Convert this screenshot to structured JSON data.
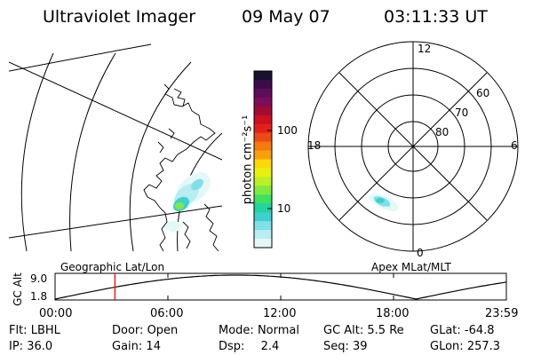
{
  "header": {
    "instrument": "Ultraviolet Imager",
    "date": "09 May 07",
    "time": "03:11:33 UT"
  },
  "colorbar": {
    "unit_label": "photon cm⁻²s⁻¹",
    "ticks": [
      "100",
      "10"
    ],
    "colors": [
      "#1a1030",
      "#3a0c4a",
      "#5c0e58",
      "#7e0c5c",
      "#a00c34",
      "#cc1020",
      "#e4201a",
      "#ec4a16",
      "#f47a10",
      "#f8a00c",
      "#fcd80a",
      "#e8f010",
      "#bcf024",
      "#80ea40",
      "#40e060",
      "#22d4a0",
      "#3ed0d0",
      "#80e0e8",
      "#b8eef0",
      "#e4f8f8"
    ]
  },
  "polar_plot": {
    "labels": {
      "noon": "12",
      "midnight": "0",
      "dusk": "18",
      "dawn": "6"
    },
    "lat_labels": [
      "60",
      "70",
      "80"
    ]
  },
  "timeline": {
    "left_title": "Geographic Lat/Lon",
    "right_title": "Apex MLat/MLT",
    "ylabel": "GC Alt",
    "ymax": "9.0",
    "ymin": "1.8",
    "ticks": [
      "00:00",
      "06:00",
      "12:00",
      "18:00",
      "23:59"
    ],
    "current_time_marker": "03:11"
  },
  "status": {
    "flt_label": "Flt:",
    "flt_value": "LBHL",
    "ip_label": "IP:",
    "ip_value": "36.0",
    "door_label": "Door:",
    "door_value": "Open",
    "gain_label": "Gain:",
    "gain_value": "14",
    "mode_label": "Mode:",
    "mode_value": "Normal",
    "dsp_label": "Dsp:",
    "dsp_value": "2.4",
    "gcalt_label": "GC Alt:",
    "gcalt_value": "5.5 Re",
    "seq_label": "Seq:",
    "seq_value": "39",
    "glat_label": "GLat:",
    "glat_value": "-64.8",
    "glon_label": "GLon:",
    "glon_value": "257.3"
  }
}
